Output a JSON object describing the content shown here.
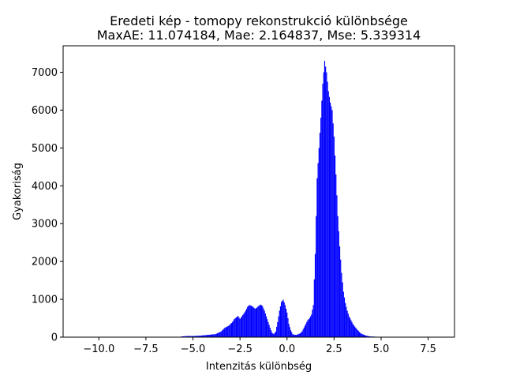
{
  "chart_data": {
    "type": "bar",
    "title_line1": "Eredeti kép - tomopy rekonstrukció különbsége",
    "title_line2": "MaxAE: 11.074184, Mae: 2.164837, Mse: 5.339314",
    "xlabel": "Intenzitás különbség",
    "ylabel": "Gyakoriság",
    "xlim": [
      -11.9,
      8.9
    ],
    "ylim": [
      0,
      7700
    ],
    "xticks": [
      -10.0,
      -7.5,
      -5.0,
      -2.5,
      0.0,
      2.5,
      5.0,
      7.5
    ],
    "xtick_labels": [
      "−10.0",
      "−7.5",
      "−5.0",
      "−2.5",
      "0.0",
      "2.5",
      "5.0",
      "7.5"
    ],
    "yticks": [
      0,
      1000,
      2000,
      3000,
      4000,
      5000,
      6000,
      7000
    ],
    "ytick_labels": [
      "0",
      "1000",
      "2000",
      "3000",
      "4000",
      "5000",
      "6000",
      "7000"
    ],
    "bar_color": "#0000ff",
    "bin_width": 0.05,
    "bin_centers": [
      -5.6,
      -5.3,
      -5.0,
      -4.6,
      -4.2,
      -3.8,
      -3.5,
      -3.3,
      -3.1,
      -3.0,
      -2.9,
      -2.8,
      -2.7,
      -2.6,
      -2.5,
      -2.4,
      -2.3,
      -2.2,
      -2.1,
      -2.0,
      -1.9,
      -1.8,
      -1.7,
      -1.6,
      -1.5,
      -1.4,
      -1.3,
      -1.2,
      -1.1,
      -1.0,
      -0.9,
      -0.8,
      -0.7,
      -0.6,
      -0.5,
      -0.4,
      -0.3,
      -0.2,
      -0.1,
      0.0,
      0.1,
      0.2,
      0.3,
      0.4,
      0.5,
      0.6,
      0.7,
      0.8,
      0.9,
      1.0,
      1.1,
      1.2,
      1.3,
      1.4,
      1.5,
      1.6,
      1.7,
      1.8,
      1.9,
      2.0,
      2.1,
      2.2,
      2.3,
      2.4,
      2.5,
      2.6,
      2.7,
      2.8,
      2.9,
      3.0,
      3.1,
      3.2,
      3.3,
      3.4,
      3.5,
      3.6,
      3.7,
      3.8,
      3.9,
      4.0,
      4.1,
      4.2,
      4.3,
      4.4,
      4.6,
      4.8,
      5.0
    ],
    "counts": [
      20,
      30,
      30,
      40,
      60,
      80,
      150,
      250,
      300,
      350,
      400,
      480,
      520,
      560,
      480,
      550,
      620,
      700,
      800,
      850,
      830,
      800,
      750,
      780,
      830,
      860,
      820,
      700,
      550,
      400,
      250,
      120,
      80,
      150,
      400,
      700,
      930,
      990,
      850,
      650,
      350,
      180,
      80,
      60,
      60,
      80,
      100,
      150,
      250,
      350,
      450,
      500,
      600,
      850,
      2200,
      4200,
      5000,
      5800,
      6700,
      7300,
      7000,
      6500,
      6200,
      6000,
      5300,
      4300,
      3200,
      2400,
      1700,
      1200,
      900,
      700,
      550,
      450,
      350,
      280,
      220,
      160,
      110,
      80,
      60,
      40,
      30,
      20,
      15,
      10,
      5
    ]
  }
}
